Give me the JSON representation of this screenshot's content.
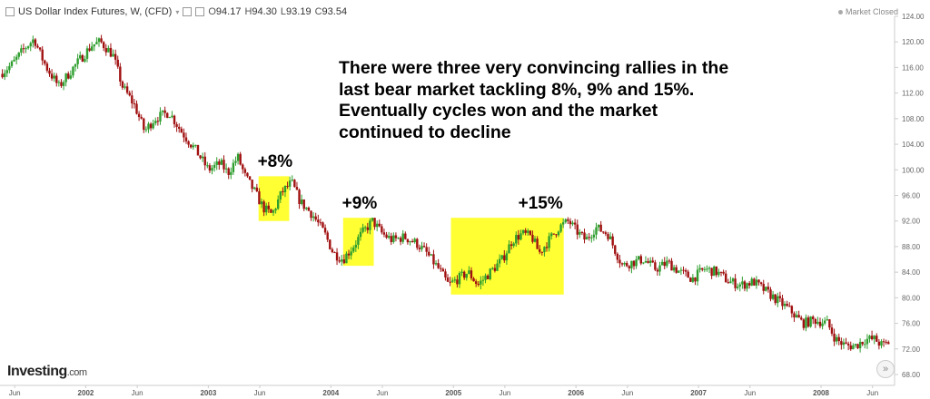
{
  "header": {
    "title": "US Dollar Index Futures, W, (CFD)",
    "open_label": "O",
    "open": "94.17",
    "high_label": "H",
    "high": "94.30",
    "low_label": "L",
    "low": "93.19",
    "close_label": "C",
    "close": "93.54",
    "market_status": "Market Closed"
  },
  "annotation": "There were three very convincing rallies in the last bear market tackling 8%, 9% and 15%. Eventually cycles won and the market continued to decline",
  "brand": {
    "name": "Investing",
    "suffix": ".com"
  },
  "colors": {
    "up": "#2e9e2e",
    "down": "#a01010",
    "highlight": "#ffff33"
  },
  "chart_data": {
    "type": "candlestick",
    "title": "US Dollar Index Futures, W, (CFD)",
    "xlabel": "",
    "ylabel": "",
    "ylim": [
      68,
      124
    ],
    "xlim": [
      2001.3,
      2008.6
    ],
    "yticks": [
      "124.00",
      "120.00",
      "116.00",
      "112.00",
      "108.00",
      "104.00",
      "100.00",
      "96.00",
      "92.00",
      "88.00",
      "84.00",
      "80.00",
      "76.00",
      "72.00",
      "68.00"
    ],
    "xticks": [
      {
        "label": "Jun",
        "t": 2001.42
      },
      {
        "label": "2002",
        "t": 2002.0
      },
      {
        "label": "Jun",
        "t": 2002.42
      },
      {
        "label": "2003",
        "t": 2003.0
      },
      {
        "label": "Jun",
        "t": 2003.42
      },
      {
        "label": "2004",
        "t": 2004.0
      },
      {
        "label": "Jun",
        "t": 2004.42
      },
      {
        "label": "2005",
        "t": 2005.0
      },
      {
        "label": "Jun",
        "t": 2005.42
      },
      {
        "label": "2006",
        "t": 2006.0
      },
      {
        "label": "Jun",
        "t": 2006.42
      },
      {
        "label": "2007",
        "t": 2007.0
      },
      {
        "label": "Jun",
        "t": 2007.42
      },
      {
        "label": "2008",
        "t": 2008.0
      },
      {
        "label": "Jun",
        "t": 2008.42
      }
    ],
    "path": [
      [
        2001.3,
        115.0
      ],
      [
        2001.4,
        116.5
      ],
      [
        2001.5,
        119.0
      ],
      [
        2001.58,
        120.5
      ],
      [
        2001.63,
        118.0
      ],
      [
        2001.68,
        116.0
      ],
      [
        2001.78,
        113.0
      ],
      [
        2001.9,
        116.0
      ],
      [
        2002.05,
        119.5
      ],
      [
        2002.12,
        120.0
      ],
      [
        2002.22,
        118.0
      ],
      [
        2002.3,
        113.0
      ],
      [
        2002.4,
        110.0
      ],
      [
        2002.48,
        106.0
      ],
      [
        2002.56,
        108.0
      ],
      [
        2002.68,
        109.0
      ],
      [
        2002.78,
        106.0
      ],
      [
        2002.9,
        103.0
      ],
      [
        2003.0,
        100.0
      ],
      [
        2003.1,
        101.0
      ],
      [
        2003.16,
        99.5
      ],
      [
        2003.24,
        102.0
      ],
      [
        2003.3,
        99.0
      ],
      [
        2003.38,
        96.5
      ],
      [
        2003.45,
        94.0
      ],
      [
        2003.52,
        93.0
      ],
      [
        2003.6,
        96.5
      ],
      [
        2003.68,
        98.0
      ],
      [
        2003.75,
        95.0
      ],
      [
        2003.85,
        93.0
      ],
      [
        2003.95,
        90.0
      ],
      [
        2004.02,
        87.0
      ],
      [
        2004.1,
        86.0
      ],
      [
        2004.18,
        88.0
      ],
      [
        2004.25,
        90.0
      ],
      [
        2004.34,
        92.0
      ],
      [
        2004.42,
        90.0
      ],
      [
        2004.5,
        89.0
      ],
      [
        2004.6,
        89.5
      ],
      [
        2004.7,
        88.5
      ],
      [
        2004.78,
        87.0
      ],
      [
        2004.88,
        84.5
      ],
      [
        2004.96,
        82.0
      ],
      [
        2005.04,
        83.0
      ],
      [
        2005.12,
        84.0
      ],
      [
        2005.2,
        82.0
      ],
      [
        2005.3,
        84.0
      ],
      [
        2005.4,
        86.0
      ],
      [
        2005.48,
        89.0
      ],
      [
        2005.56,
        90.0
      ],
      [
        2005.64,
        89.5
      ],
      [
        2005.7,
        87.0
      ],
      [
        2005.78,
        89.0
      ],
      [
        2005.86,
        91.0
      ],
      [
        2005.94,
        92.0
      ],
      [
        2006.0,
        90.5
      ],
      [
        2006.08,
        89.0
      ],
      [
        2006.16,
        91.0
      ],
      [
        2006.26,
        90.0
      ],
      [
        2006.33,
        87.0
      ],
      [
        2006.38,
        85.0
      ],
      [
        2006.45,
        85.5
      ],
      [
        2006.55,
        86.0
      ],
      [
        2006.65,
        84.5
      ],
      [
        2006.75,
        85.5
      ],
      [
        2006.85,
        84.0
      ],
      [
        2006.95,
        83.0
      ],
      [
        2007.05,
        84.5
      ],
      [
        2007.15,
        84.0
      ],
      [
        2007.25,
        82.5
      ],
      [
        2007.35,
        82.0
      ],
      [
        2007.45,
        82.5
      ],
      [
        2007.55,
        81.0
      ],
      [
        2007.65,
        79.5
      ],
      [
        2007.75,
        78.0
      ],
      [
        2007.85,
        76.0
      ],
      [
        2007.95,
        76.5
      ],
      [
        2008.05,
        76.0
      ],
      [
        2008.12,
        73.5
      ],
      [
        2008.2,
        72.5
      ],
      [
        2008.28,
        72.5
      ],
      [
        2008.36,
        73.5
      ],
      [
        2008.44,
        73.5
      ],
      [
        2008.5,
        72.5
      ],
      [
        2008.55,
        73.0
      ]
    ],
    "rallies": [
      {
        "label": "+8%",
        "x0": 2003.41,
        "x1": 2003.66,
        "y0": 92.0,
        "y1": 99.0
      },
      {
        "label": "+9%",
        "x0": 2004.1,
        "x1": 2004.35,
        "y0": 85.0,
        "y1": 92.5
      },
      {
        "label": "+15%",
        "x0": 2004.98,
        "x1": 2005.9,
        "y0": 80.5,
        "y1": 92.5
      }
    ]
  }
}
